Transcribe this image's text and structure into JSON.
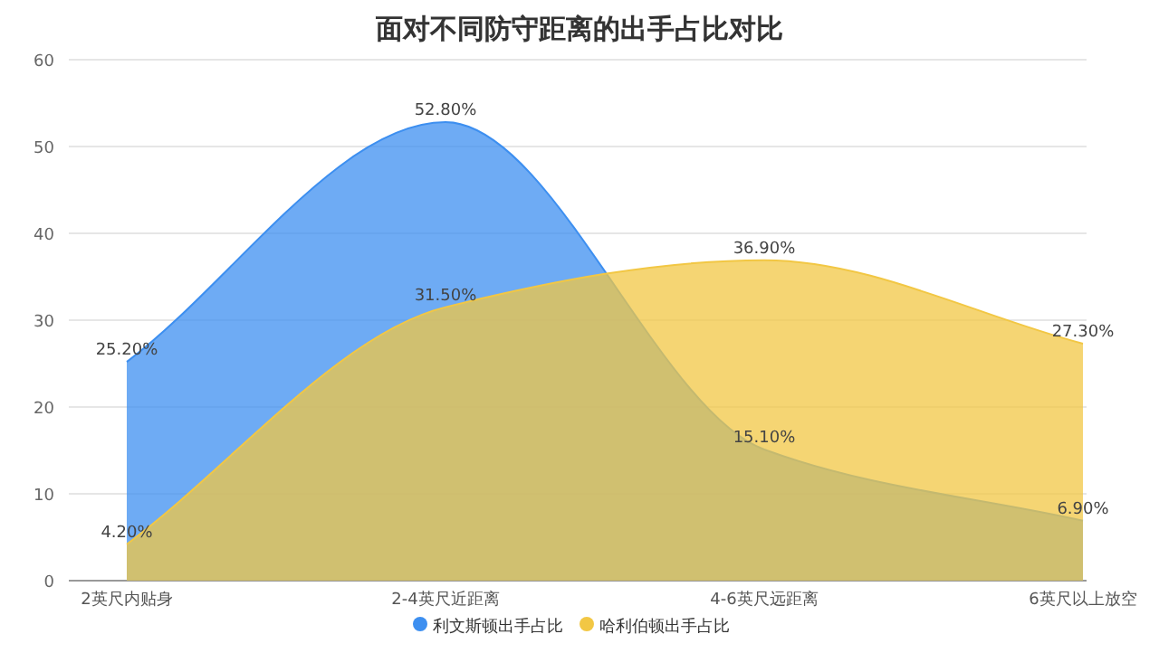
{
  "chart_data": {
    "type": "area",
    "title": "面对不同防守距离的出手占比对比",
    "categories": [
      "2英尺内贴身",
      "2-4英尺近距离",
      "4-6英尺远距离",
      "6英尺以上放空"
    ],
    "series": [
      {
        "name": "利文斯顿出手占比",
        "color": "#3d8ff0",
        "values": [
          25.2,
          52.8,
          15.1,
          6.9
        ],
        "value_labels": [
          "25.20%",
          "52.80%",
          "15.10%",
          "6.90%"
        ]
      },
      {
        "name": "哈利伯顿出手占比",
        "color": "#f2c744",
        "values": [
          4.2,
          31.5,
          36.9,
          27.3
        ],
        "value_labels": [
          "4.20%",
          "31.50%",
          "36.90%",
          "27.30%"
        ]
      }
    ],
    "ylim": [
      0,
      60
    ],
    "yticks": [
      0,
      10,
      20,
      30,
      40,
      50,
      60
    ],
    "grid": "y",
    "legend": "bottom"
  }
}
